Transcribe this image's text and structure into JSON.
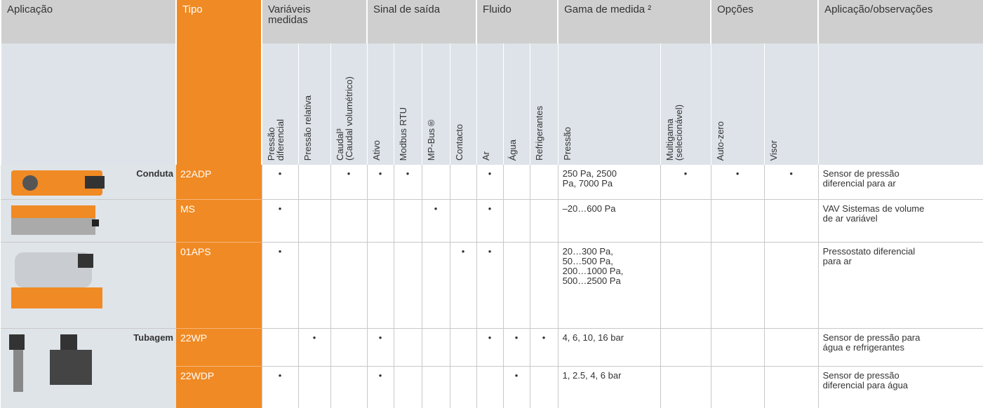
{
  "header": {
    "application": "Aplicação",
    "type": "Tipo",
    "groups": [
      {
        "label": "Variáveis\nmedidas",
        "columns": [
          "Pressão\ndiferencial",
          "Pressão relativa",
          "Caudal³\n(Caudal volumétrico)"
        ]
      },
      {
        "label": "Sinal de saída",
        "columns": [
          "Ativo",
          "Modbus RTU",
          "MP-Bus®",
          "Contacto"
        ]
      },
      {
        "label": "Fluido",
        "columns": [
          "Ar",
          "Água",
          "Refrigerantes"
        ]
      },
      {
        "label": "Gama de medida ²",
        "columns": [
          "Pressão",
          "Multigama\n(selecionável)"
        ]
      },
      {
        "label": "Opções",
        "columns": [
          "Auto-zero",
          "Visor"
        ]
      }
    ],
    "notes": "Aplicação/observações"
  },
  "rows": [
    {
      "application": "Conduta",
      "type": "22ADP",
      "cells": [
        "•",
        null,
        "•",
        "•",
        "•",
        null,
        null,
        "•",
        null,
        null,
        "250 Pa, 2500\nPa, 7000 Pa",
        "•",
        "•",
        "•"
      ],
      "notes": "Sensor de pressão\ndiferencial para ar"
    },
    {
      "type": "MS",
      "cells": [
        "•",
        null,
        null,
        null,
        null,
        "•",
        null,
        "•",
        null,
        null,
        "–20…600 Pa",
        null,
        null,
        null
      ],
      "notes": "VAV Sistemas de volume\nde ar variável"
    },
    {
      "type": "01APS",
      "cells": [
        "•",
        null,
        null,
        null,
        null,
        null,
        "•",
        "•",
        null,
        null,
        "20…300 Pa,\n50…500 Pa,\n200…1000 Pa,\n500…2500 Pa",
        null,
        null,
        null
      ],
      "notes": "Pressostato diferencial\npara ar"
    },
    {
      "application": "Tubagem",
      "type": "22WP",
      "cells": [
        null,
        "•",
        null,
        "•",
        null,
        null,
        null,
        "•",
        "•",
        "•",
        "4, 6, 10, 16 bar",
        null,
        null,
        null
      ],
      "notes": "Sensor de pressão para\nágua e refrigerantes"
    },
    {
      "type": "22WDP",
      "cells": [
        "•",
        null,
        null,
        "•",
        null,
        null,
        null,
        null,
        "•",
        null,
        "1, 2.5, 4, 6 bar",
        null,
        null,
        null
      ],
      "notes": "Sensor de pressão\ndiferencial para água"
    }
  ]
}
